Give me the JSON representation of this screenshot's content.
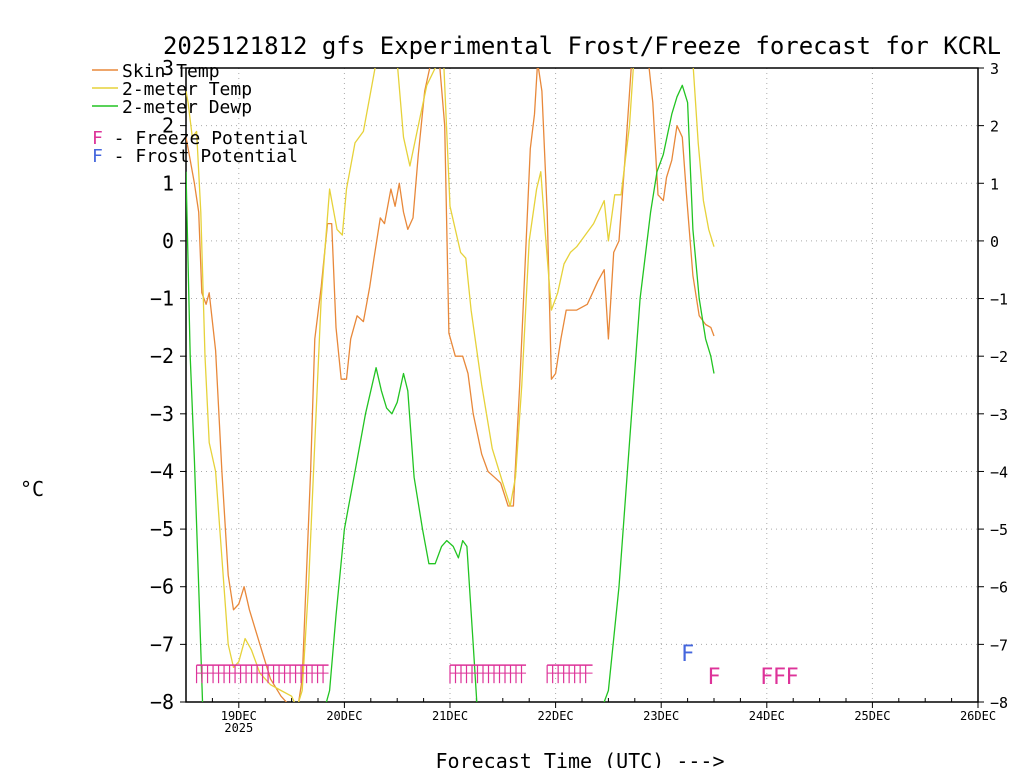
{
  "chart_data": {
    "type": "line",
    "title": "2025121812 gfs Experimental Frost/Freeze forecast for KCRL",
    "xlabel": "Forecast Time (UTC) --->",
    "ylabel": "°C",
    "ylim": [
      -8,
      3
    ],
    "xlim": [
      18.5,
      26.0
    ],
    "y_ticks": [
      -8,
      -7,
      -6,
      -5,
      -4,
      -3,
      -2,
      -1,
      0,
      1,
      2,
      3
    ],
    "x_ticks": [
      {
        "x": 19,
        "label": "19DEC",
        "sub": "2025"
      },
      {
        "x": 20,
        "label": "20DEC",
        "sub": ""
      },
      {
        "x": 21,
        "label": "21DEC",
        "sub": ""
      },
      {
        "x": 22,
        "label": "22DEC",
        "sub": ""
      },
      {
        "x": 23,
        "label": "23DEC",
        "sub": ""
      },
      {
        "x": 24,
        "label": "24DEC",
        "sub": ""
      },
      {
        "x": 25,
        "label": "25DEC",
        "sub": ""
      },
      {
        "x": 26,
        "label": "26DEC",
        "sub": ""
      }
    ],
    "grid": true,
    "legend": [
      {
        "label": "Skin Temp",
        "color": "#e8883a"
      },
      {
        "label": "2-meter Temp",
        "color": "#e6d23a"
      },
      {
        "label": "2-meter Dewp",
        "color": "#22c422"
      }
    ],
    "annotation_legend": [
      {
        "letter": "F",
        "text": " - Freeze Potential",
        "color": "#dd3399"
      },
      {
        "letter": "F",
        "text": " - Frost Potential",
        "color": "#4466dd"
      }
    ],
    "series": [
      {
        "name": "Skin Temp",
        "color": "#e8883a",
        "points": [
          [
            18.5,
            1.8
          ],
          [
            18.53,
            1.5
          ],
          [
            18.58,
            1.0
          ],
          [
            18.62,
            0.5
          ],
          [
            18.65,
            -0.9
          ],
          [
            18.69,
            -1.1
          ],
          [
            18.72,
            -0.9
          ],
          [
            18.78,
            -1.9
          ],
          [
            18.84,
            -4.0
          ],
          [
            18.9,
            -5.8
          ],
          [
            18.95,
            -6.4
          ],
          [
            19.0,
            -6.3
          ],
          [
            19.05,
            -6.0
          ],
          [
            19.1,
            -6.4
          ],
          [
            19.2,
            -7.0
          ],
          [
            19.3,
            -7.6
          ],
          [
            19.4,
            -7.9
          ],
          [
            19.5,
            -8.1
          ],
          [
            19.55,
            -8.2
          ],
          [
            19.6,
            -7.6
          ],
          [
            19.68,
            -4.0
          ],
          [
            19.72,
            -1.7
          ],
          [
            19.78,
            -0.8
          ],
          [
            19.84,
            0.3
          ],
          [
            19.88,
            0.3
          ],
          [
            19.92,
            -1.5
          ],
          [
            19.97,
            -2.4
          ],
          [
            20.02,
            -2.4
          ],
          [
            20.06,
            -1.7
          ],
          [
            20.12,
            -1.3
          ],
          [
            20.18,
            -1.4
          ],
          [
            20.24,
            -0.8
          ],
          [
            20.28,
            -0.3
          ],
          [
            20.34,
            0.4
          ],
          [
            20.38,
            0.3
          ],
          [
            20.44,
            0.9
          ],
          [
            20.48,
            0.6
          ],
          [
            20.52,
            1.0
          ],
          [
            20.56,
            0.5
          ],
          [
            20.6,
            0.2
          ],
          [
            20.65,
            0.4
          ],
          [
            20.7,
            1.5
          ],
          [
            20.76,
            2.6
          ],
          [
            20.82,
            3.1
          ],
          [
            20.9,
            3.1
          ],
          [
            20.95,
            2.0
          ],
          [
            20.99,
            -1.6
          ],
          [
            21.05,
            -2.0
          ],
          [
            21.12,
            -2.0
          ],
          [
            21.17,
            -2.3
          ],
          [
            21.22,
            -3.0
          ],
          [
            21.3,
            -3.7
          ],
          [
            21.36,
            -4.0
          ],
          [
            21.42,
            -4.1
          ],
          [
            21.48,
            -4.2
          ],
          [
            21.55,
            -4.6
          ],
          [
            21.6,
            -4.6
          ],
          [
            21.66,
            -2.5
          ],
          [
            21.76,
            1.6
          ],
          [
            21.8,
            2.2
          ],
          [
            21.83,
            3.1
          ],
          [
            21.87,
            2.6
          ],
          [
            21.92,
            0.5
          ],
          [
            21.96,
            -2.4
          ],
          [
            22.0,
            -2.3
          ],
          [
            22.05,
            -1.7
          ],
          [
            22.1,
            -1.2
          ],
          [
            22.2,
            -1.2
          ],
          [
            22.3,
            -1.1
          ],
          [
            22.35,
            -0.9
          ],
          [
            22.4,
            -0.7
          ],
          [
            22.46,
            -0.5
          ],
          [
            22.5,
            -1.7
          ],
          [
            22.55,
            -0.2
          ],
          [
            22.6,
            0.0
          ],
          [
            22.66,
            1.5
          ],
          [
            22.72,
            3.1
          ],
          [
            22.88,
            3.1
          ],
          [
            22.92,
            2.4
          ],
          [
            22.97,
            0.8
          ],
          [
            23.02,
            0.7
          ],
          [
            23.05,
            1.1
          ],
          [
            23.1,
            1.4
          ],
          [
            23.15,
            2.0
          ],
          [
            23.2,
            1.8
          ],
          [
            23.24,
            0.8
          ],
          [
            23.3,
            -0.6
          ],
          [
            23.36,
            -1.3
          ],
          [
            23.42,
            -1.45
          ],
          [
            23.47,
            -1.5
          ],
          [
            23.5,
            -1.65
          ]
        ]
      },
      {
        "name": "2-meter Temp",
        "color": "#e6d23a",
        "points": [
          [
            18.5,
            2.6
          ],
          [
            18.52,
            2.4
          ],
          [
            18.56,
            1.8
          ],
          [
            18.6,
            1.9
          ],
          [
            18.64,
            0.5
          ],
          [
            18.68,
            -2.0
          ],
          [
            18.72,
            -3.5
          ],
          [
            18.78,
            -4.0
          ],
          [
            18.84,
            -5.5
          ],
          [
            18.9,
            -7.0
          ],
          [
            18.95,
            -7.4
          ],
          [
            19.0,
            -7.3
          ],
          [
            19.06,
            -6.9
          ],
          [
            19.12,
            -7.1
          ],
          [
            19.2,
            -7.5
          ],
          [
            19.3,
            -7.7
          ],
          [
            19.4,
            -7.8
          ],
          [
            19.5,
            -7.9
          ],
          [
            19.55,
            -8.1
          ],
          [
            19.6,
            -7.8
          ],
          [
            19.66,
            -6.0
          ],
          [
            19.72,
            -3.5
          ],
          [
            19.78,
            -1.0
          ],
          [
            19.86,
            0.9
          ],
          [
            19.93,
            0.2
          ],
          [
            19.98,
            0.1
          ],
          [
            20.02,
            0.9
          ],
          [
            20.1,
            1.7
          ],
          [
            20.18,
            1.9
          ],
          [
            20.26,
            2.7
          ],
          [
            20.3,
            3.1
          ],
          [
            20.5,
            3.1
          ],
          [
            20.56,
            1.8
          ],
          [
            20.62,
            1.3
          ],
          [
            20.7,
            2.0
          ],
          [
            20.78,
            2.7
          ],
          [
            20.86,
            3.0
          ],
          [
            20.94,
            3.1
          ],
          [
            21.0,
            0.6
          ],
          [
            21.05,
            0.2
          ],
          [
            21.1,
            -0.2
          ],
          [
            21.15,
            -0.3
          ],
          [
            21.2,
            -1.2
          ],
          [
            21.3,
            -2.5
          ],
          [
            21.4,
            -3.6
          ],
          [
            21.5,
            -4.2
          ],
          [
            21.57,
            -4.6
          ],
          [
            21.62,
            -4.1
          ],
          [
            21.68,
            -2.5
          ],
          [
            21.75,
            0.0
          ],
          [
            21.82,
            0.9
          ],
          [
            21.86,
            1.2
          ],
          [
            21.9,
            0.2
          ],
          [
            21.96,
            -1.2
          ],
          [
            22.02,
            -0.9
          ],
          [
            22.08,
            -0.4
          ],
          [
            22.14,
            -0.2
          ],
          [
            22.2,
            -0.1
          ],
          [
            22.28,
            0.1
          ],
          [
            22.36,
            0.3
          ],
          [
            22.46,
            0.7
          ],
          [
            22.5,
            0.0
          ],
          [
            22.56,
            0.8
          ],
          [
            22.62,
            0.8
          ],
          [
            22.7,
            2.0
          ],
          [
            22.74,
            3.1
          ],
          [
            23.3,
            3.1
          ],
          [
            23.35,
            1.7
          ],
          [
            23.4,
            0.7
          ],
          [
            23.45,
            0.2
          ],
          [
            23.5,
            -0.1
          ]
        ]
      },
      {
        "name": "2-meter Dewp",
        "color": "#22c422",
        "points": [
          [
            18.5,
            1.2
          ],
          [
            18.54,
            -2.0
          ],
          [
            18.58,
            -3.8
          ],
          [
            18.62,
            -6.0
          ],
          [
            18.66,
            -8.2
          ],
          [
            19.8,
            -8.2
          ],
          [
            19.86,
            -7.8
          ],
          [
            19.92,
            -6.5
          ],
          [
            20.0,
            -5.0
          ],
          [
            20.1,
            -4.0
          ],
          [
            20.2,
            -3.0
          ],
          [
            20.3,
            -2.2
          ],
          [
            20.35,
            -2.6
          ],
          [
            20.4,
            -2.9
          ],
          [
            20.45,
            -3.0
          ],
          [
            20.5,
            -2.8
          ],
          [
            20.56,
            -2.3
          ],
          [
            20.6,
            -2.6
          ],
          [
            20.66,
            -4.1
          ],
          [
            20.74,
            -5.0
          ],
          [
            20.8,
            -5.6
          ],
          [
            20.86,
            -5.6
          ],
          [
            20.92,
            -5.3
          ],
          [
            20.97,
            -5.2
          ],
          [
            21.03,
            -5.3
          ],
          [
            21.08,
            -5.5
          ],
          [
            21.12,
            -5.2
          ],
          [
            21.16,
            -5.3
          ],
          [
            21.22,
            -7.0
          ],
          [
            21.26,
            -8.2
          ],
          [
            22.42,
            -8.2
          ],
          [
            22.5,
            -7.8
          ],
          [
            22.6,
            -6.0
          ],
          [
            22.7,
            -3.5
          ],
          [
            22.8,
            -1.0
          ],
          [
            22.9,
            0.5
          ],
          [
            22.96,
            1.2
          ],
          [
            23.02,
            1.5
          ],
          [
            23.1,
            2.2
          ],
          [
            23.15,
            2.5
          ],
          [
            23.2,
            2.7
          ],
          [
            23.25,
            2.4
          ],
          [
            23.3,
            0.2
          ],
          [
            23.36,
            -1.0
          ],
          [
            23.42,
            -1.7
          ],
          [
            23.47,
            -2.0
          ],
          [
            23.5,
            -2.3
          ]
        ]
      }
    ],
    "markers": [
      {
        "type": "freeze",
        "color": "#dd3399",
        "from": 18.6,
        "to": 19.85,
        "y": -7.5
      },
      {
        "type": "freeze",
        "color": "#dd3399",
        "from": 21.0,
        "to": 21.72,
        "y": -7.5
      },
      {
        "type": "freeze",
        "color": "#dd3399",
        "from": 21.92,
        "to": 22.35,
        "y": -7.5
      },
      {
        "type": "frost",
        "color": "#4466dd",
        "letter": "F",
        "x": 23.25,
        "y": -7.15
      },
      {
        "type": "freeze",
        "color": "#dd3399",
        "letter": "F",
        "x": 23.5,
        "y": -7.55
      },
      {
        "type": "freeze",
        "color": "#dd3399",
        "letter": "F",
        "x": 24.0,
        "y": -7.55
      },
      {
        "type": "freeze",
        "color": "#dd3399",
        "letter": "F",
        "x": 24.12,
        "y": -7.55
      },
      {
        "type": "freeze",
        "color": "#dd3399",
        "letter": "F",
        "x": 24.24,
        "y": -7.55
      }
    ]
  }
}
